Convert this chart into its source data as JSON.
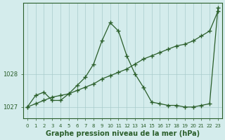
{
  "xlabel": "Graphe pression niveau de la mer (hPa)",
  "bg_color": "#d4ecec",
  "grid_color": "#a8cccc",
  "line_color": "#2a5e2a",
  "hours": [
    0,
    1,
    2,
    3,
    4,
    5,
    6,
    7,
    8,
    9,
    10,
    11,
    12,
    13,
    14,
    15,
    16,
    17,
    18,
    19,
    20,
    21,
    22,
    23
  ],
  "series1": [
    1027.0,
    1027.1,
    1027.2,
    1027.3,
    1027.35,
    1027.4,
    1027.5,
    1027.6,
    1027.7,
    1027.85,
    1027.95,
    1028.05,
    1028.15,
    1028.3,
    1028.45,
    1028.55,
    1028.65,
    1028.75,
    1028.85,
    1028.9,
    1029.0,
    1029.15,
    1029.3,
    1029.9
  ],
  "series2": [
    1027.0,
    1027.35,
    1027.45,
    1027.2,
    1027.2,
    1027.4,
    1027.65,
    1027.9,
    1028.3,
    1029.0,
    1029.55,
    1029.3,
    1028.55,
    1028.0,
    1027.6,
    1027.15,
    1027.1,
    1027.05,
    1027.05,
    1027.0,
    1027.0,
    1027.05,
    1027.1,
    1030.0
  ],
  "ylim_min": 1026.65,
  "ylim_max": 1030.15,
  "yticks": [
    1027,
    1028
  ],
  "label_fontsize": 7,
  "tick_fontsize": 6
}
